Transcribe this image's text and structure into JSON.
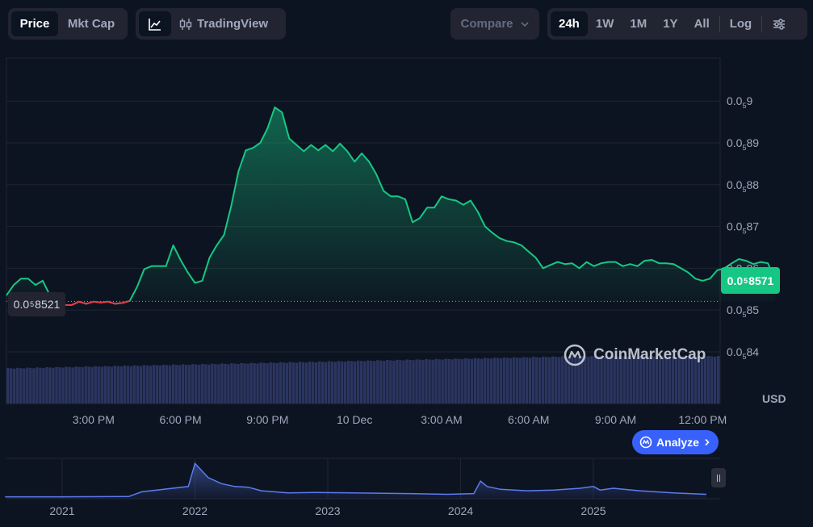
{
  "toolbar": {
    "type_tabs": [
      "Price",
      "Mkt Cap"
    ],
    "style_label": "TradingView",
    "compare_label": "Compare",
    "ranges": [
      "24h",
      "1W",
      "1M",
      "1Y",
      "All"
    ],
    "log_label": "Log",
    "active_type": "Price",
    "active_range": "24h"
  },
  "price_tag": {
    "prefix": "0.0",
    "sub": "5",
    "digits": "8571"
  },
  "open_tag": {
    "prefix": "0.0",
    "sub": "5",
    "digits": "8521"
  },
  "watermark": "CoinMarketCap",
  "analyze_label": "Analyze",
  "currency_label": "USD",
  "colors": {
    "background": "#0d1421",
    "up": "#16c784",
    "down": "#ea3943",
    "volume": "#2b3560",
    "accent": "#3861fb",
    "history": "#5b7cf0"
  },
  "chart_data": {
    "type": "area",
    "title": "",
    "x_ticks": [
      "3:00 PM",
      "6:00 PM",
      "9:00 PM",
      "10 Dec",
      "3:00 AM",
      "6:00 AM",
      "9:00 AM",
      "12:00 PM"
    ],
    "x_tick_hours": [
      3,
      6,
      9,
      12,
      15,
      18,
      21,
      24
    ],
    "y_ticks": [
      {
        "prefix": "0.0",
        "sub": "5",
        "digits": "9",
        "value": 0.9
      },
      {
        "prefix": "0.0",
        "sub": "5",
        "digits": "89",
        "value": 0.89
      },
      {
        "prefix": "0.0",
        "sub": "5",
        "digits": "88",
        "value": 0.88
      },
      {
        "prefix": "0.0",
        "sub": "5",
        "digits": "87",
        "value": 0.87
      },
      {
        "prefix": "0.0",
        "sub": "5",
        "digits": "86",
        "value": 0.86
      },
      {
        "prefix": "0.0",
        "sub": "5",
        "digits": "85",
        "value": 0.85
      },
      {
        "prefix": "0.0",
        "sub": "5",
        "digits": "84",
        "value": 0.84
      }
    ],
    "y_note": "values in units of 1e-5 USD (0.0₅9 = 0.000009)",
    "ylim": [
      0.8378,
      0.9013
    ],
    "baseline": 0.8521,
    "last": 0.8571,
    "price_series": {
      "x_hours": [
        0.0,
        0.25,
        0.5,
        0.75,
        1.0,
        1.25,
        1.5,
        1.75,
        2.0,
        2.25,
        2.5,
        2.75,
        3.0,
        3.25,
        3.5,
        3.75,
        4.0,
        4.25,
        4.5,
        4.75,
        5.0,
        5.25,
        5.5,
        5.75,
        6.0,
        6.25,
        6.5,
        6.75,
        7.0,
        7.25,
        7.5,
        7.75,
        8.0,
        8.25,
        8.5,
        8.75,
        9.0,
        9.25,
        9.5,
        9.75,
        10.0,
        10.25,
        10.5,
        10.75,
        11.0,
        11.25,
        11.5,
        11.75,
        12.0,
        12.25,
        12.5,
        12.75,
        13.0,
        13.25,
        13.5,
        13.75,
        14.0,
        14.25,
        14.5,
        14.75,
        15.0,
        15.25,
        15.5,
        15.75,
        16.0,
        16.25,
        16.5,
        16.75,
        17.0,
        17.25,
        17.5,
        17.75,
        18.0,
        18.25,
        18.5,
        18.75,
        19.0,
        19.25,
        19.5,
        19.75,
        20.0,
        20.25,
        20.5,
        20.75,
        21.0,
        21.25,
        21.5,
        21.75,
        22.0,
        22.25,
        22.5,
        22.75,
        23.0,
        23.25,
        23.5,
        23.75,
        24.0,
        24.25,
        24.5,
        24.75,
        25.0,
        25.25,
        25.5,
        25.75,
        26.0,
        26.25,
        26.5
      ],
      "values": [
        0.8535,
        0.856,
        0.8575,
        0.8575,
        0.856,
        0.857,
        0.8535,
        0.852,
        0.8512,
        0.8512,
        0.852,
        0.8515,
        0.852,
        0.8518,
        0.852,
        0.8515,
        0.8517,
        0.8522,
        0.8555,
        0.8598,
        0.8605,
        0.8605,
        0.8605,
        0.8655,
        0.862,
        0.859,
        0.8565,
        0.857,
        0.8625,
        0.8655,
        0.868,
        0.875,
        0.8832,
        0.8882,
        0.8888,
        0.89,
        0.8935,
        0.8985,
        0.8973,
        0.891,
        0.8895,
        0.888,
        0.8895,
        0.8882,
        0.8895,
        0.888,
        0.8898,
        0.888,
        0.8855,
        0.8875,
        0.8855,
        0.8825,
        0.8785,
        0.8772,
        0.8772,
        0.8765,
        0.871,
        0.872,
        0.8745,
        0.8745,
        0.8772,
        0.8765,
        0.8762,
        0.8752,
        0.8762,
        0.8735,
        0.87,
        0.8685,
        0.8672,
        0.8665,
        0.8662,
        0.8655,
        0.864,
        0.8625,
        0.86,
        0.8608,
        0.8615,
        0.861,
        0.8612,
        0.86,
        0.8615,
        0.8605,
        0.8612,
        0.8615,
        0.8615,
        0.8605,
        0.861,
        0.8605,
        0.8618,
        0.862,
        0.8612,
        0.8612,
        0.861,
        0.86,
        0.859,
        0.8575,
        0.857,
        0.8575,
        0.8595,
        0.86,
        0.8612,
        0.8622,
        0.8618,
        0.861,
        0.8615,
        0.8612,
        0.8571
      ]
    },
    "history_labels": [
      "2021",
      "2022",
      "2023",
      "2024",
      "2025"
    ],
    "history_series": {
      "x_years": [
        2020.57,
        2021.0,
        2021.5,
        2021.6,
        2021.95,
        2022.0,
        2022.05,
        2022.1,
        2022.2,
        2022.3,
        2022.4,
        2022.5,
        2022.7,
        2022.9,
        2023.2,
        2023.6,
        2023.9,
        2024.1,
        2024.15,
        2024.2,
        2024.3,
        2024.5,
        2024.7,
        2024.9,
        2025.0,
        2025.05,
        2025.15,
        2025.35,
        2025.6,
        2025.85
      ],
      "values": [
        0.01,
        0.01,
        0.015,
        0.15,
        0.3,
        0.95,
        0.75,
        0.55,
        0.38,
        0.3,
        0.28,
        0.18,
        0.12,
        0.13,
        0.12,
        0.1,
        0.08,
        0.1,
        0.45,
        0.3,
        0.22,
        0.18,
        0.2,
        0.25,
        0.3,
        0.2,
        0.25,
        0.18,
        0.12,
        0.08
      ]
    },
    "grid": true,
    "legend": "none"
  }
}
